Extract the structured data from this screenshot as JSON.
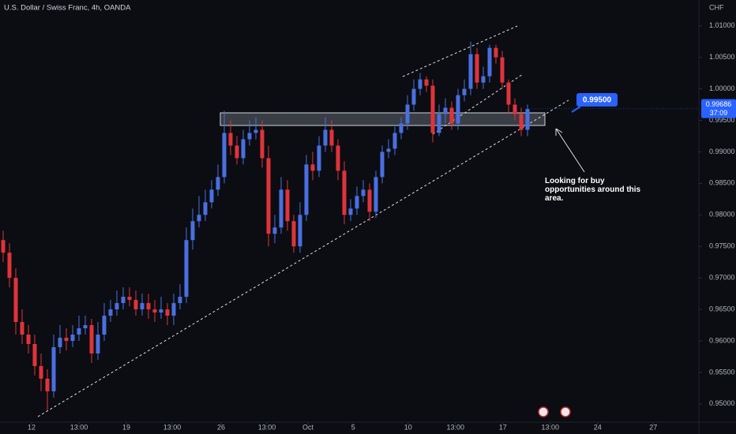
{
  "chart_data": {
    "type": "candlestick",
    "title": "U.S. Dollar / Swiss Franc, 4h, OANDA",
    "y_axis_label": "CHF",
    "up_color": "#4a6fe0",
    "down_color": "#e0333b",
    "xlim": [
      0,
      110
    ],
    "xticks": [
      {
        "value": 5,
        "label": "12"
      },
      {
        "value": 12.5,
        "label": "13:00"
      },
      {
        "value": 20,
        "label": "19"
      },
      {
        "value": 27.25,
        "label": "13:00"
      },
      {
        "value": 35,
        "label": "26"
      },
      {
        "value": 42.25,
        "label": "13:00"
      },
      {
        "value": 48.75,
        "label": "Oct"
      },
      {
        "value": 55.9,
        "label": "5"
      },
      {
        "value": 64.6,
        "label": "10"
      },
      {
        "value": 72.1,
        "label": "13:00"
      },
      {
        "value": 79.6,
        "label": "17"
      },
      {
        "value": 87.1,
        "label": "13:00"
      },
      {
        "value": 94.6,
        "label": "24"
      },
      {
        "value": 103.4,
        "label": "27"
      }
    ],
    "ylim": [
      0.9471,
      1.0141
    ],
    "yticks": [
      {
        "value": 0.95,
        "label": "0.95000"
      },
      {
        "value": 0.955,
        "label": "0.95500"
      },
      {
        "value": 0.96,
        "label": "0.96000"
      },
      {
        "value": 0.965,
        "label": "0.96500"
      },
      {
        "value": 0.97,
        "label": "0.97000"
      },
      {
        "value": 0.975,
        "label": "0.97500"
      },
      {
        "value": 0.98,
        "label": "0.98000"
      },
      {
        "value": 0.985,
        "label": "0.98500"
      },
      {
        "value": 0.99,
        "label": "0.99000"
      },
      {
        "value": 0.995,
        "label": "0.99500"
      },
      {
        "value": 1.0,
        "label": "1.00000"
      },
      {
        "value": 1.005,
        "label": "1.00500"
      },
      {
        "value": 1.01,
        "label": "1.01000"
      }
    ],
    "open": [
      0.976,
      0.974,
      0.97,
      0.963,
      0.961,
      0.9595,
      0.956,
      0.954,
      0.952,
      0.959,
      0.9605,
      0.96,
      0.961,
      0.962,
      0.9625,
      0.958,
      0.961,
      0.964,
      0.965,
      0.966,
      0.967,
      0.9665,
      0.965,
      0.966,
      0.965,
      0.9645,
      0.965,
      0.964,
      0.966,
      0.967,
      0.976,
      0.979,
      0.98,
      0.982,
      0.984,
      0.986,
      0.993,
      0.991,
      0.989,
      0.992,
      0.993,
      0.9935,
      0.989,
      0.977,
      0.978,
      0.984,
      0.979,
      0.975,
      0.98,
      0.988,
      0.987,
      0.991,
      0.9935,
      0.991,
      0.987,
      0.98,
      0.981,
      0.983,
      0.984,
      0.9805,
      0.986,
      0.99,
      0.9905,
      0.993,
      0.9945,
      0.9975,
      1.0,
      1.0015,
      1.0005,
      0.993,
      0.996,
      0.997,
      0.9945,
      0.999,
      1.0,
      1.0055,
      1.001,
      1.002,
      1.0065,
      1.005,
      1.001,
      0.9975,
      0.996,
      0.9935
    ],
    "high": [
      0.9775,
      0.9755,
      0.9715,
      0.965,
      0.9625,
      0.961,
      0.958,
      0.9555,
      0.961,
      0.9625,
      0.962,
      0.9625,
      0.964,
      0.964,
      0.9635,
      0.963,
      0.966,
      0.9665,
      0.968,
      0.9685,
      0.9685,
      0.968,
      0.9675,
      0.9675,
      0.9665,
      0.967,
      0.966,
      0.9675,
      0.969,
      0.978,
      0.981,
      0.983,
      0.984,
      0.9855,
      0.988,
      0.9965,
      0.995,
      0.9925,
      0.9935,
      0.995,
      0.9955,
      0.995,
      0.991,
      0.98,
      0.986,
      0.9855,
      0.98,
      0.982,
      0.9895,
      0.99,
      0.9925,
      0.9955,
      0.995,
      0.992,
      0.9885,
      0.9825,
      0.9845,
      0.9855,
      0.985,
      0.987,
      0.991,
      0.992,
      0.994,
      0.9955,
      0.999,
      1.0015,
      1.0025,
      1.002,
      1.0015,
      0.9975,
      0.9985,
      0.998,
      1.0,
      1.0015,
      1.0075,
      1.0065,
      1.0035,
      1.007,
      1.007,
      1.006,
      1.0015,
      0.9985,
      0.997,
      0.9975
    ],
    "low": [
      0.9725,
      0.9685,
      0.961,
      0.9595,
      0.958,
      0.9545,
      0.952,
      0.949,
      0.951,
      0.958,
      0.9585,
      0.959,
      0.96,
      0.961,
      0.9565,
      0.957,
      0.96,
      0.963,
      0.964,
      0.965,
      0.9655,
      0.964,
      0.964,
      0.9635,
      0.963,
      0.9635,
      0.9625,
      0.9625,
      0.965,
      0.966,
      0.9745,
      0.978,
      0.979,
      0.981,
      0.983,
      0.985,
      0.9895,
      0.988,
      0.988,
      0.991,
      0.992,
      0.9875,
      0.975,
      0.9755,
      0.977,
      0.9775,
      0.974,
      0.974,
      0.979,
      0.9855,
      0.986,
      0.99,
      0.99,
      0.9855,
      0.9785,
      0.979,
      0.98,
      0.982,
      0.979,
      0.9795,
      0.985,
      0.989,
      0.9895,
      0.992,
      0.9935,
      0.9965,
      0.999,
      0.9995,
      0.9915,
      0.9925,
      0.9945,
      0.9935,
      0.9935,
      0.998,
      0.999,
      1.0,
      1.0,
      1.001,
      1.004,
      1.0,
      0.996,
      0.995,
      0.9925,
      0.9925
    ],
    "close": [
      0.974,
      0.97,
      0.963,
      0.961,
      0.9595,
      0.956,
      0.954,
      0.952,
      0.959,
      0.9605,
      0.96,
      0.961,
      0.962,
      0.9625,
      0.958,
      0.961,
      0.964,
      0.965,
      0.966,
      0.967,
      0.9665,
      0.965,
      0.966,
      0.965,
      0.9645,
      0.965,
      0.964,
      0.966,
      0.967,
      0.976,
      0.979,
      0.98,
      0.982,
      0.984,
      0.986,
      0.993,
      0.991,
      0.989,
      0.992,
      0.993,
      0.9935,
      0.989,
      0.977,
      0.978,
      0.984,
      0.979,
      0.975,
      0.98,
      0.988,
      0.987,
      0.991,
      0.9935,
      0.991,
      0.987,
      0.98,
      0.981,
      0.983,
      0.984,
      0.9805,
      0.986,
      0.99,
      0.9905,
      0.993,
      0.9945,
      0.9975,
      1.0,
      1.0015,
      1.0005,
      0.993,
      0.996,
      0.997,
      0.9945,
      0.999,
      1.0,
      1.0055,
      1.001,
      1.002,
      1.0065,
      1.005,
      1.001,
      0.9975,
      0.996,
      0.9935,
      0.9968
    ],
    "last_price": 0.99686,
    "countdown": "37:09",
    "annotations": [
      "0.99500",
      "Looking for buy opportunities around this area."
    ]
  }
}
